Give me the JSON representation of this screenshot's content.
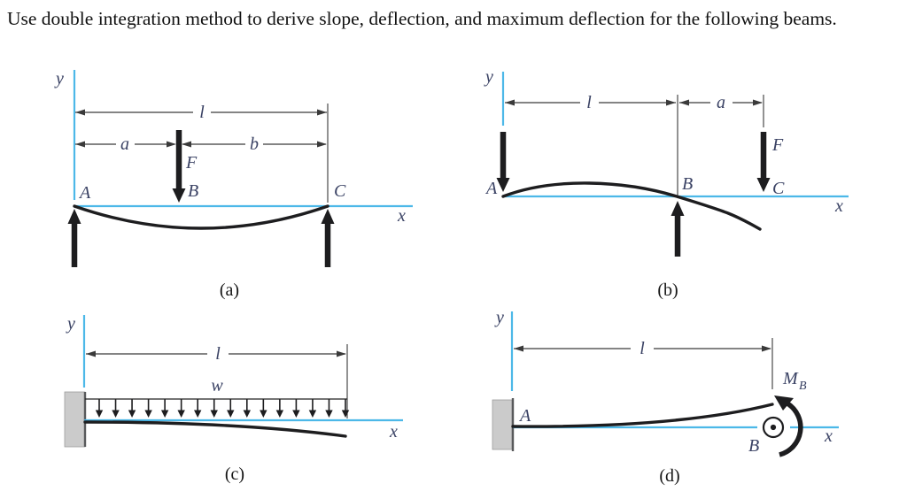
{
  "title": "Use double integration method to derive slope, deflection, and maximum deflection for the following beams.",
  "colors": {
    "axis": "#4cb8e8",
    "ink": "#1d1d1f",
    "label": "#3a4264",
    "wall_fill": "#cbcbcb",
    "wall_edge": "#58595b"
  },
  "diagrams": {
    "a": {
      "caption": "(a)",
      "y_label": "y",
      "x_label": "x",
      "dim_total": "l",
      "dim_left": "a",
      "dim_right": "b",
      "force": "F",
      "point_left": "A",
      "point_mid": "B",
      "point_right": "C"
    },
    "b": {
      "caption": "(b)",
      "y_label": "y",
      "x_label": "x",
      "dim_span": "l",
      "dim_overhang": "a",
      "force": "F",
      "point_left": "A",
      "point_mid": "B",
      "point_right": "C"
    },
    "c": {
      "caption": "(c)",
      "y_label": "y",
      "x_label": "x",
      "dim_span": "l",
      "load": {
        "label": "w",
        "arrow_count": 16
      }
    },
    "d": {
      "caption": "(d)",
      "y_label": "y",
      "x_label": "x",
      "dim_span": "l",
      "point_left": "A",
      "point_right": "B",
      "moment": {
        "symbol": "M",
        "subscript": "B"
      }
    }
  }
}
